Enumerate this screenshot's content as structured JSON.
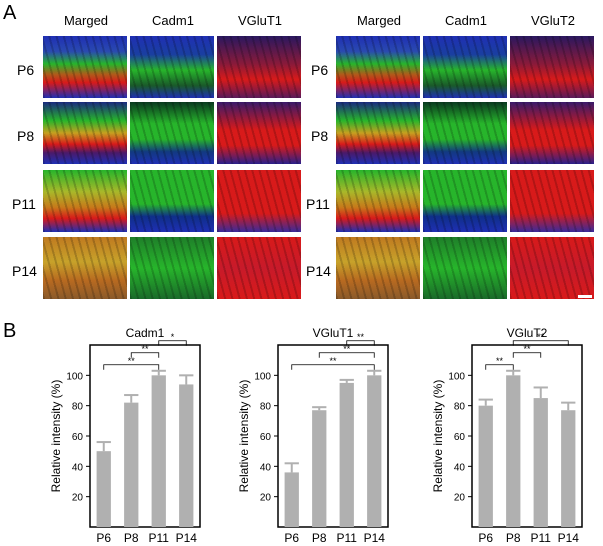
{
  "panel_a": {
    "label": "A",
    "left_columns": [
      "Marged",
      "Cadm1",
      "VGluT1"
    ],
    "right_columns": [
      "Marged",
      "Cadm1",
      "VGluT2"
    ],
    "rows": [
      "P6",
      "P8",
      "P11",
      "P14"
    ]
  },
  "panel_b": {
    "label": "B"
  },
  "colors": {
    "bar": "#b0b0b0",
    "blue": "#1f2fb4",
    "green": "#27b52b",
    "red": "#d81a1a",
    "yellow": "#c7a22a"
  },
  "chart_data": [
    {
      "type": "bar",
      "title": "Cadm1",
      "ylabel": "Relative intensity (%)",
      "xlabel": "",
      "categories": [
        "P6",
        "P8",
        "P11",
        "P14"
      ],
      "values": [
        50,
        82,
        100,
        94
      ],
      "errors": [
        6,
        5,
        3,
        6
      ],
      "ylim": [
        0,
        120
      ],
      "yticks": [
        20,
        40,
        60,
        80,
        100
      ],
      "significance": [
        {
          "from": 0,
          "to": 2,
          "label": "**"
        },
        {
          "from": 1,
          "to": 2,
          "label": "**"
        },
        {
          "from": 2,
          "to": 3,
          "label": "*"
        }
      ]
    },
    {
      "type": "bar",
      "title": "VGluT1",
      "ylabel": "Relative intensity (%)",
      "xlabel": "",
      "categories": [
        "P6",
        "P8",
        "P11",
        "P14"
      ],
      "values": [
        36,
        77,
        95,
        100
      ],
      "errors": [
        6,
        2,
        2,
        3
      ],
      "ylim": [
        0,
        120
      ],
      "yticks": [
        20,
        40,
        60,
        80,
        100
      ],
      "significance": [
        {
          "from": 0,
          "to": 3,
          "label": "**"
        },
        {
          "from": 1,
          "to": 3,
          "label": "**"
        },
        {
          "from": 2,
          "to": 3,
          "label": "**"
        }
      ]
    },
    {
      "type": "bar",
      "title": "VGluT2",
      "ylabel": "Relative intensity (%)",
      "xlabel": "",
      "categories": [
        "P6",
        "P8",
        "P11",
        "P14"
      ],
      "values": [
        80,
        100,
        85,
        77
      ],
      "errors": [
        4,
        3,
        7,
        5
      ],
      "ylim": [
        0,
        120
      ],
      "yticks": [
        20,
        40,
        60,
        80,
        100
      ],
      "significance": [
        {
          "from": 0,
          "to": 1,
          "label": "**"
        },
        {
          "from": 1,
          "to": 2,
          "label": "**"
        },
        {
          "from": 1,
          "to": 3,
          "label": "**"
        }
      ]
    }
  ]
}
